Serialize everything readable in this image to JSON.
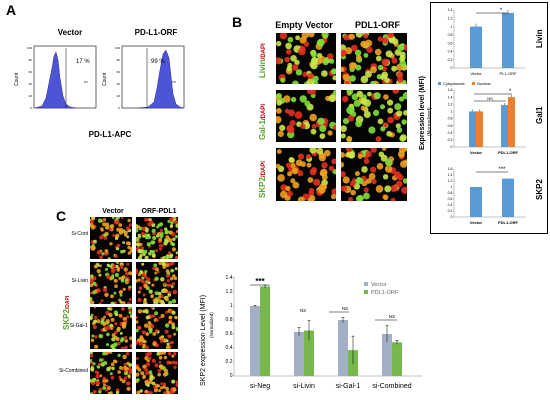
{
  "panel_a": {
    "letter": "A",
    "titles": [
      "Vector",
      "PD-L1-ORF"
    ],
    "percents": [
      "17 %",
      "99 %"
    ],
    "gate_label": "P3",
    "y_label": "Count",
    "x_label": "PD-L1-APC",
    "y_ticks": [
      "0",
      "20",
      "40",
      "60",
      "80",
      "100"
    ]
  },
  "panel_b": {
    "letter": "B",
    "columns": [
      "Empty Vector",
      "PDL1-ORF"
    ],
    "rows": [
      {
        "main": "Livin",
        "dapi": "/DAPI"
      },
      {
        "main": "Gal-1",
        "dapi": "/DAPI"
      },
      {
        "main": "SKP2",
        "dapi": "/DAPI"
      }
    ],
    "y_axis": "Expression level (MFI)",
    "y_axis_sub": "(Normalized)",
    "legend": [
      "Cytoplasmic",
      "Nuclear"
    ],
    "chart_side_labels": [
      "Livin",
      "Gal1",
      "SKP2"
    ],
    "x_labels": [
      "Vector",
      "PL1-ORF",
      "Vector",
      "PDL1-ORF",
      "Vector",
      "PDL1-ORF"
    ],
    "sig": [
      "*",
      "*",
      "NS",
      "***"
    ]
  },
  "panel_c": {
    "letter": "C",
    "columns": [
      "Vector",
      "ORF-PDL1"
    ],
    "rows": [
      "Si-Cont",
      "Si-Livin",
      "Si-Gal-1",
      "Si-Combined"
    ],
    "side_label_main": "SKP2",
    "side_label_dapi": "/DAPI",
    "legend": [
      "Vector",
      "PDL1-ORF"
    ],
    "y_axis": "SKP2 expression Level (MFI)",
    "y_axis_sub": "(Normalized)",
    "sig": [
      "***",
      "NS",
      "NS",
      "NS"
    ]
  },
  "chart_data": [
    {
      "type": "bar",
      "categories": [
        "Vector",
        "PL1-ORF"
      ],
      "values": [
        1.0,
        1.33
      ],
      "ylim": [
        0,
        1.4
      ],
      "yticks": [
        "0",
        "0.2",
        "0.4",
        "0.6",
        "0.8",
        "1",
        "1.2",
        "1.4"
      ],
      "colors": [
        "#5b9bd5"
      ]
    },
    {
      "type": "bar",
      "categories": [
        "Vector",
        "PDL1-ORF"
      ],
      "series": [
        {
          "name": "Cytoplasmic",
          "values": [
            1.0,
            1.18
          ],
          "color": "#5b9bd5"
        },
        {
          "name": "Nuclear",
          "values": [
            1.0,
            1.4
          ],
          "color": "#ed7d31"
        }
      ],
      "ylim": [
        0,
        1.6
      ],
      "yticks": [
        "0",
        "0.2",
        "0.4",
        "0.6",
        "0.8",
        "1",
        "1.2",
        "1.4",
        "1.6"
      ]
    },
    {
      "type": "bar",
      "categories": [
        "Vector",
        "PDL1-ORF"
      ],
      "values": [
        1.0,
        1.28
      ],
      "ylim": [
        0,
        1.6
      ],
      "yticks": [
        "0",
        "0.2",
        "0.4",
        "0.6",
        "0.8",
        "1",
        "1.2",
        "1.4",
        "1.6"
      ],
      "colors": [
        "#5b9bd5"
      ]
    },
    {
      "type": "bar",
      "categories": [
        "si-Neg",
        "si-Livin",
        "si-Gal-1",
        "si-Combined"
      ],
      "series": [
        {
          "name": "Vector",
          "values": [
            1.0,
            0.63,
            0.8,
            0.6
          ],
          "errors": [
            0.01,
            0.06,
            0.04,
            0.12
          ],
          "color": "#a3afc4"
        },
        {
          "name": "PDL1-ORF",
          "values": [
            1.28,
            0.65,
            0.37,
            0.48
          ],
          "errors": [
            0.02,
            0.14,
            0.2,
            0.03
          ],
          "color": "#77b84c"
        }
      ],
      "ylim": [
        0,
        1.4
      ],
      "yticks": [
        "0",
        "0.2",
        "0.4",
        "0.6",
        "0.8",
        "1",
        "1.2",
        "1.4"
      ]
    }
  ]
}
